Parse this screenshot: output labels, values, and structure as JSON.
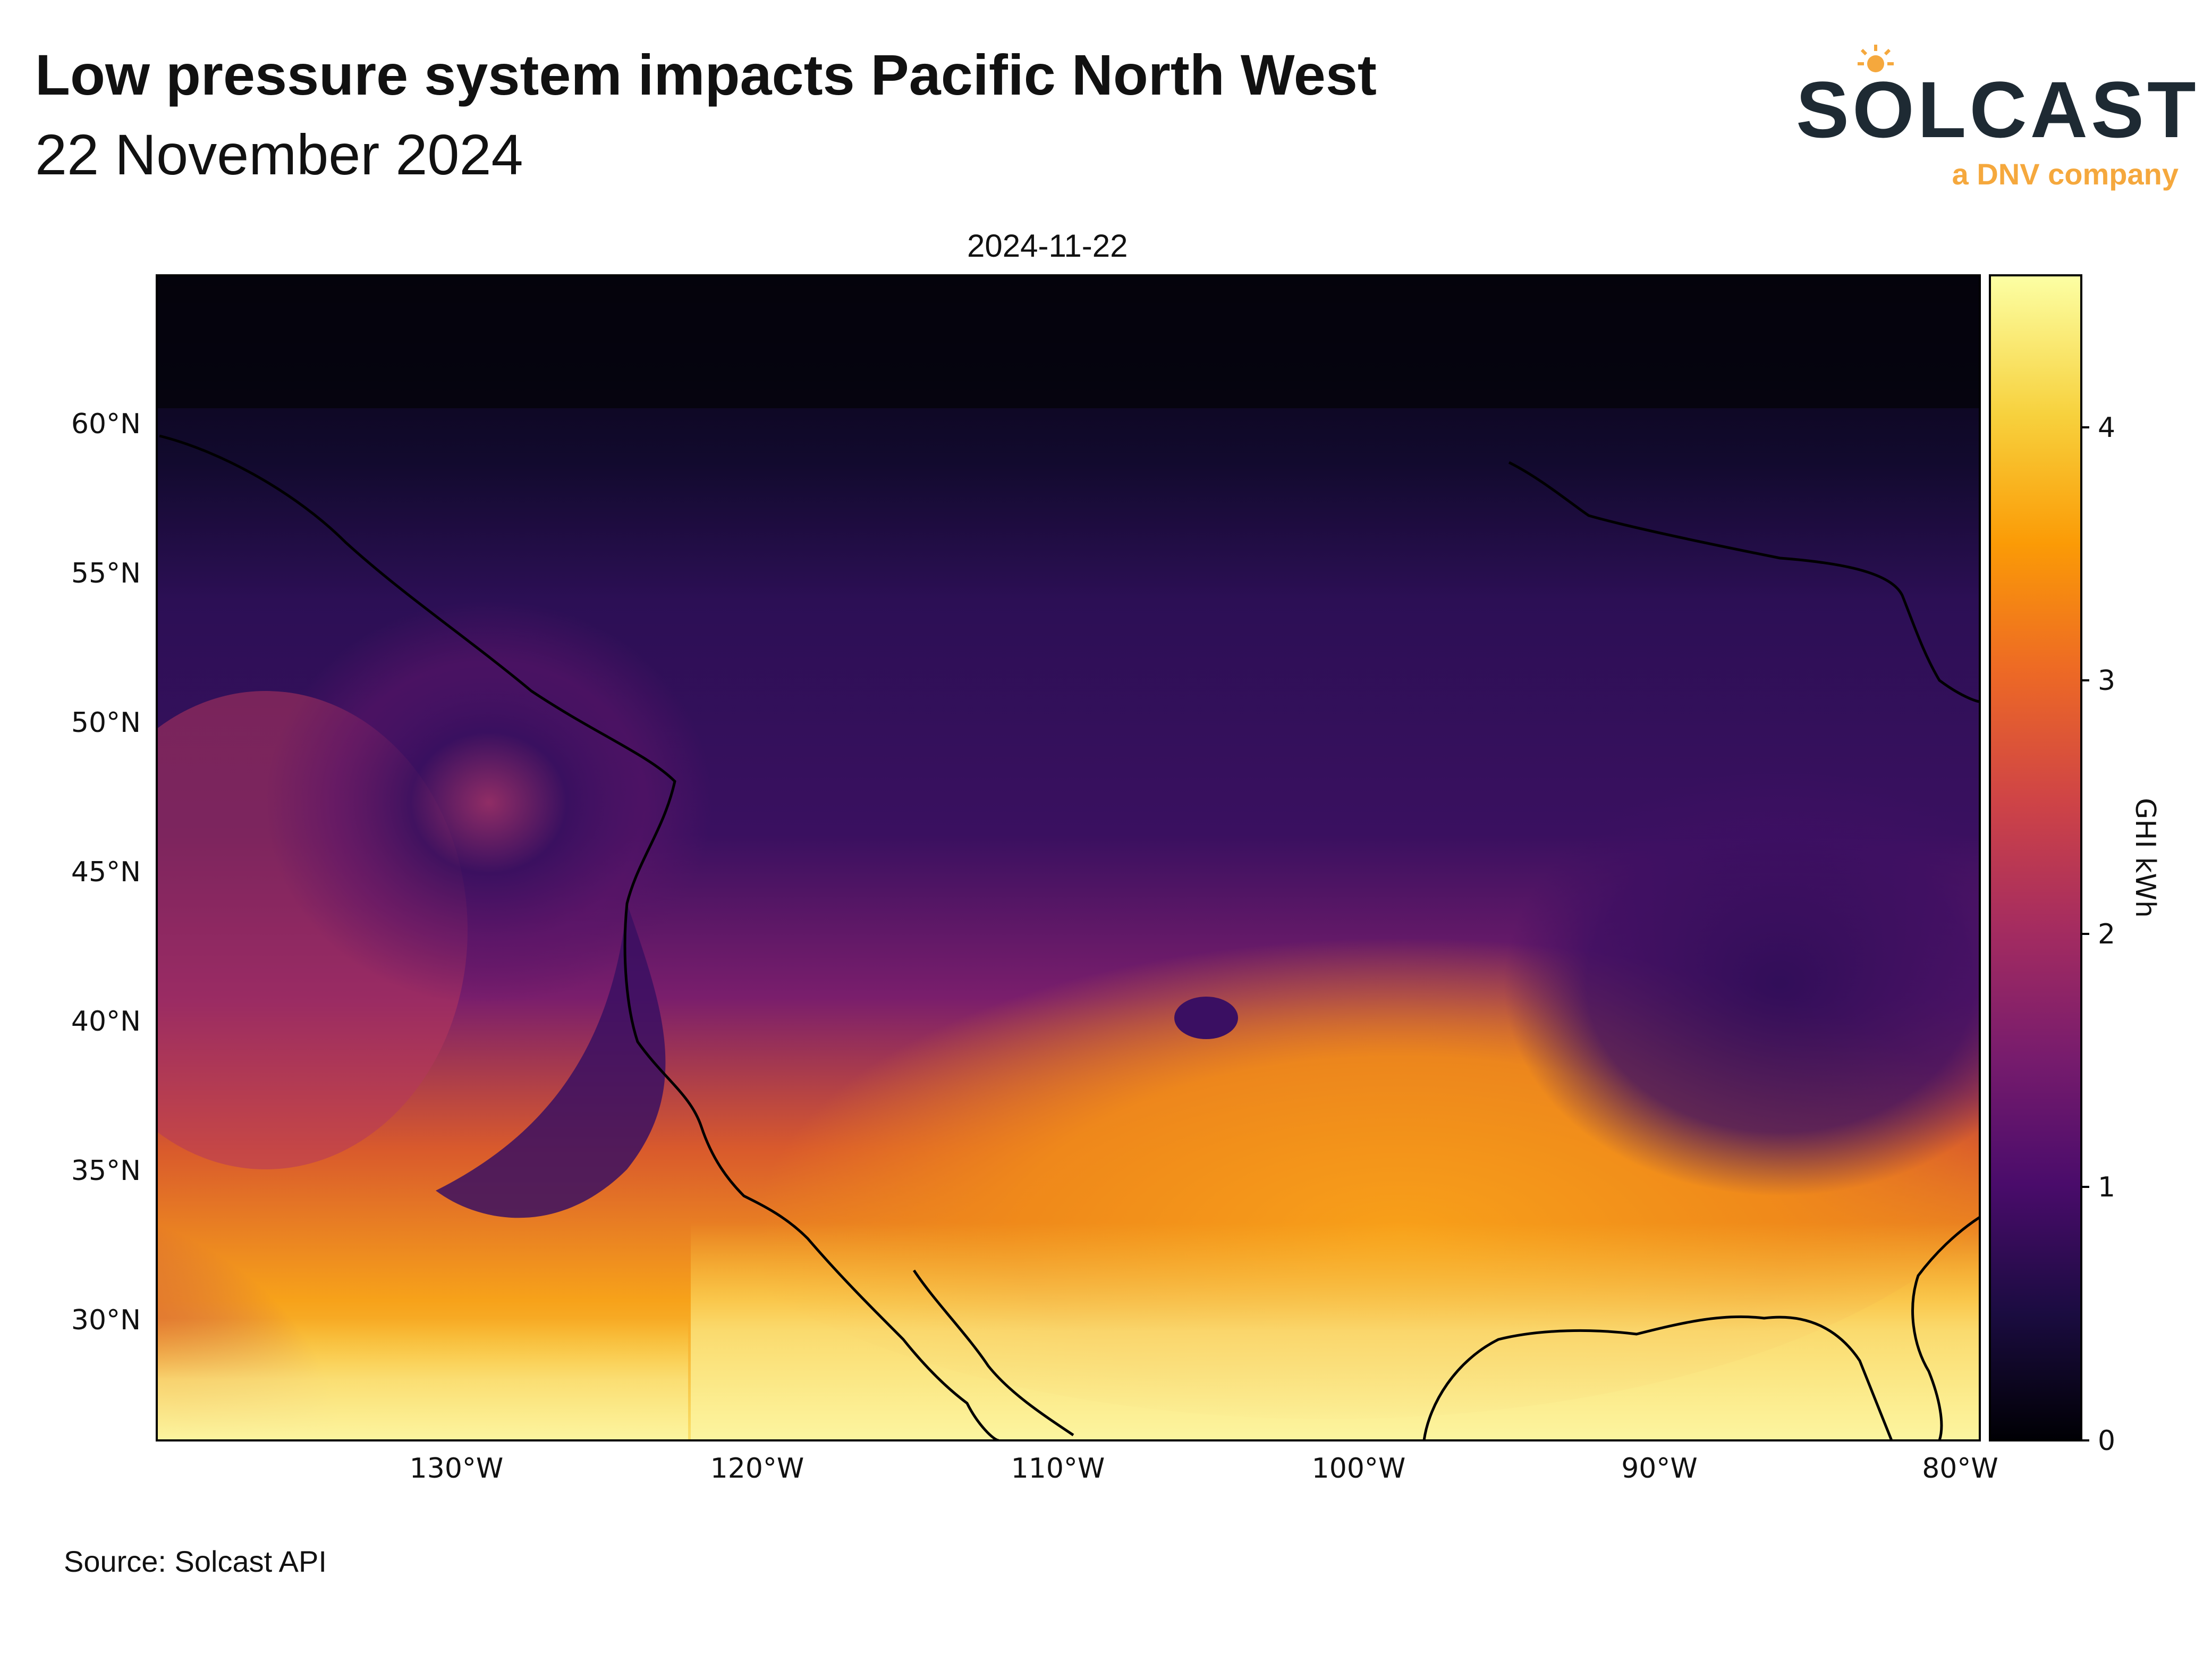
{
  "header": {
    "title": "Low pressure system impacts Pacific North West",
    "subtitle": "22 November 2024"
  },
  "logo": {
    "wordmark": "SOLCAST",
    "tagline": "a DNV company",
    "tagline_color": "#f5a83d",
    "wordmark_color": "#1e2a33"
  },
  "map": {
    "date_label": "2024-11-22",
    "variable": "GHI",
    "lat_range_deg": [
      25.8,
      64.8
    ],
    "lon_range_deg": [
      -140,
      -79.4
    ],
    "lat_ticks": [
      "60°N",
      "55°N",
      "50°N",
      "45°N",
      "40°N",
      "35°N",
      "30°N"
    ],
    "lon_ticks": [
      "130°W",
      "120°W",
      "110°W",
      "100°W",
      "90°W",
      "80°W"
    ],
    "colormap": "inferno",
    "colormap_stops": [
      "#000004",
      "#1b0c41",
      "#4a0c6b",
      "#781c6d",
      "#a52c60",
      "#cf4446",
      "#ed6925",
      "#fb9b06",
      "#f7d13d",
      "#fcffa4"
    ]
  },
  "colorbar": {
    "title": "GHI kWh",
    "min": 0,
    "max": 4.6,
    "ticks": [
      "0",
      "1",
      "2",
      "3",
      "4"
    ]
  },
  "footer": {
    "source": "Source: Solcast API"
  }
}
